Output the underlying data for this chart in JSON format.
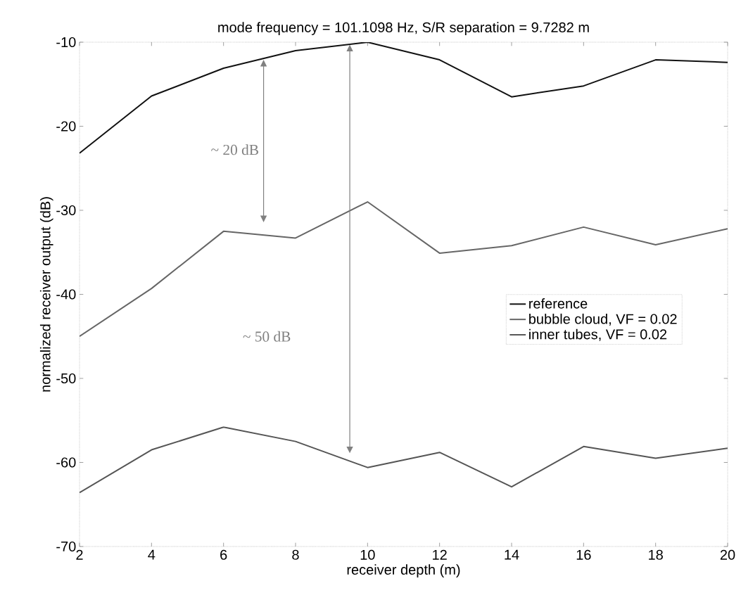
{
  "chart_data": {
    "type": "line",
    "title": "mode frequency = 101.1098 Hz, S/R separation = 9.7282 m",
    "xlabel": "receiver depth (m)",
    "ylabel": "normalized receiver output (dB)",
    "x": [
      2,
      4,
      6,
      8,
      10,
      12,
      14,
      16,
      18,
      20
    ],
    "series": [
      {
        "name": "reference",
        "color": "#111111",
        "values": [
          -23.2,
          -16.4,
          -13.1,
          -11.0,
          -10.0,
          -12.1,
          -16.5,
          -15.2,
          -12.1,
          -12.4
        ]
      },
      {
        "name": "bubble cloud, VF = 0.02",
        "color": "#666666",
        "values": [
          -45.0,
          -39.3,
          -32.5,
          -33.3,
          -29.0,
          -35.1,
          -34.2,
          -32.0,
          -34.1,
          -32.2
        ]
      },
      {
        "name": "inner tubes, VF = 0.02",
        "color": "#555555",
        "values": [
          -63.6,
          -58.5,
          -55.8,
          -57.5,
          -60.6,
          -58.8,
          -62.9,
          -58.1,
          -59.5,
          -58.3
        ]
      }
    ],
    "xlim": [
      2,
      20
    ],
    "ylim": [
      -70,
      -10
    ],
    "xticks": [
      2,
      4,
      6,
      8,
      10,
      12,
      14,
      16,
      18,
      20
    ],
    "yticks": [
      -70,
      -60,
      -50,
      -40,
      -30,
      -20,
      -10
    ],
    "annotations": [
      "~ 20 dB",
      "~ 50 dB"
    ],
    "legend": "right",
    "grid": false,
    "marker": "none",
    "line_style": "solid"
  }
}
